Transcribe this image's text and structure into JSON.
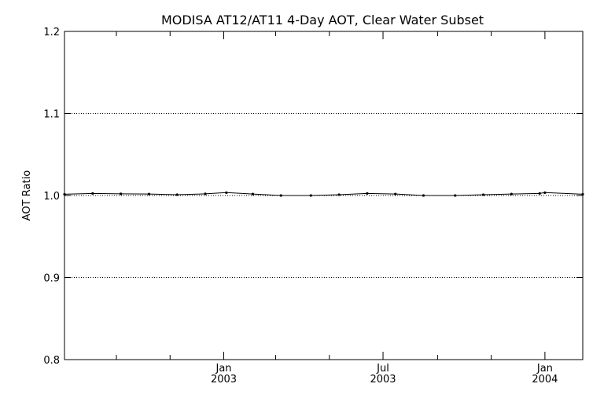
{
  "chart_data": {
    "type": "line",
    "title": "MODISA AT12/AT11 4-Day AOT, Clear Water Subset",
    "xlabel": "",
    "ylabel": "AOT Ratio",
    "xlim": [
      "2002-07-04",
      "2004-02-13"
    ],
    "ylim": [
      0.8,
      1.2
    ],
    "yticks": [
      0.8,
      0.9,
      1.0,
      1.1,
      1.2
    ],
    "ytick_labels": [
      "0.8",
      "0.9",
      "1.0",
      "1.1",
      "1.2"
    ],
    "xticks_major": [
      {
        "date": "2003-01-01",
        "month": "Jan",
        "year": "2003"
      },
      {
        "date": "2003-07-01",
        "month": "Jul",
        "year": "2003"
      },
      {
        "date": "2004-01-01",
        "month": "Jan",
        "year": "2004"
      }
    ],
    "xticks_minor": [
      "2002-09-01",
      "2002-11-01",
      "2003-03-01",
      "2003-05-01",
      "2003-09-01",
      "2003-11-01"
    ],
    "grid": {
      "y": true,
      "x": false,
      "style": "dotted"
    },
    "reference_line": 1.0,
    "series": [
      {
        "points": [
          {
            "x": "2002-07-04",
            "y": 1.0015
          },
          {
            "x": "2002-08-05",
            "y": 1.0025
          },
          {
            "x": "2002-09-06",
            "y": 1.002
          },
          {
            "x": "2002-10-08",
            "y": 1.0018
          },
          {
            "x": "2002-11-09",
            "y": 1.001
          },
          {
            "x": "2002-12-11",
            "y": 1.002
          },
          {
            "x": "2003-01-04",
            "y": 1.0035
          },
          {
            "x": "2003-02-03",
            "y": 1.0018
          },
          {
            "x": "2003-03-07",
            "y": 1.0
          },
          {
            "x": "2003-04-10",
            "y": 1.0
          },
          {
            "x": "2003-05-12",
            "y": 1.001
          },
          {
            "x": "2003-06-13",
            "y": 1.0025
          },
          {
            "x": "2003-07-15",
            "y": 1.0018
          },
          {
            "x": "2003-08-16",
            "y": 1.0
          },
          {
            "x": "2003-09-21",
            "y": 1.0
          },
          {
            "x": "2003-10-23",
            "y": 1.001
          },
          {
            "x": "2003-11-24",
            "y": 1.0018
          },
          {
            "x": "2003-12-26",
            "y": 1.0025
          },
          {
            "x": "2004-01-01",
            "y": 1.0035
          },
          {
            "x": "2004-02-13",
            "y": 1.0015
          }
        ]
      }
    ]
  }
}
